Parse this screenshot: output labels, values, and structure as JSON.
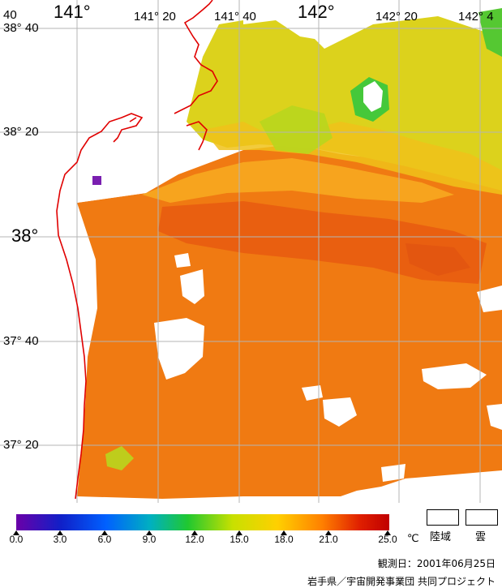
{
  "map": {
    "lon_labels_top": [
      {
        "text": "141°",
        "size": "big"
      },
      {
        "text": "141° 20",
        "size": "small"
      },
      {
        "text": "141° 40",
        "size": "small"
      },
      {
        "text": "142°",
        "size": "big"
      },
      {
        "text": "142° 20",
        "size": "small"
      },
      {
        "text": "142° 4",
        "size": "small"
      }
    ],
    "lat_labels_left": [
      {
        "text": "40",
        "size": "small"
      },
      {
        "text": "38° 40",
        "size": "small"
      },
      {
        "text": "38° 20",
        "size": "small"
      },
      {
        "text": "38°",
        "size": "big"
      },
      {
        "text": "37° 40",
        "size": "small"
      },
      {
        "text": "37° 20",
        "size": "small"
      }
    ],
    "colors": {
      "coastline": "#e00000",
      "grid": "#b4b4b4",
      "land_cloud": "#ffffff",
      "marker": "#7a1fb0"
    }
  },
  "colorbar": {
    "unit": "℃",
    "tick_labels": [
      "0.0",
      "3.0",
      "6.0",
      "9.0",
      "12.0",
      "15.0",
      "18.0",
      "21.0",
      "25.0"
    ],
    "range": [
      0,
      25
    ],
    "stops": [
      "#6a00a8",
      "#1020c8",
      "#0060ff",
      "#00b0c0",
      "#20c830",
      "#c8e000",
      "#ffd000",
      "#ff8000",
      "#e02000",
      "#c00000"
    ]
  },
  "legend": {
    "land_label": "陸域",
    "cloud_label": "雲"
  },
  "observation_date": "観測日：2001年06月25日",
  "credit": "岩手県／宇宙開発事業団 共同プロジェクト"
}
